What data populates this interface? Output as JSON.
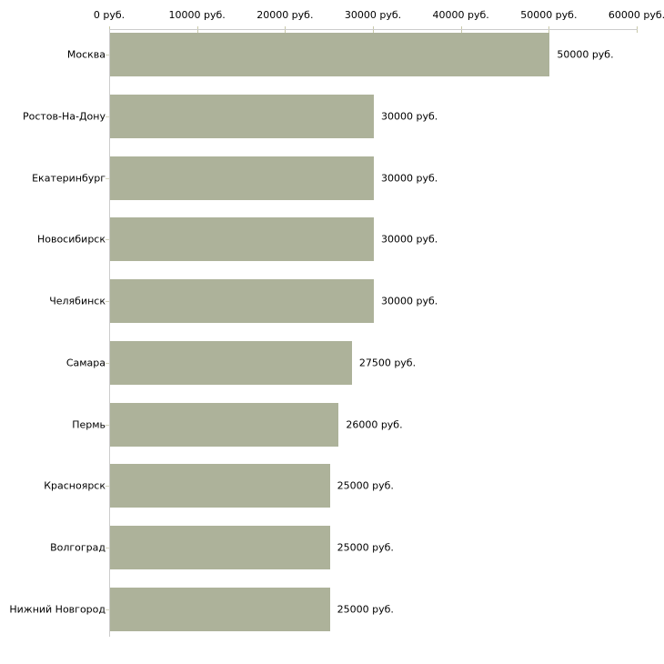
{
  "chart_data": {
    "type": "bar",
    "orientation": "horizontal",
    "title": "",
    "xlabel": "",
    "ylabel": "",
    "unit": "руб.",
    "xlim": [
      0,
      60000
    ],
    "grid": false,
    "legend": false,
    "categories": [
      "Москва",
      "Ростов-На-Дону",
      "Екатеринбург",
      "Новосибирск",
      "Челябинск",
      "Самара",
      "Пермь",
      "Красноярск",
      "Волгоград",
      "Нижний Новгород"
    ],
    "values": [
      50000,
      30000,
      30000,
      30000,
      30000,
      27500,
      26000,
      25000,
      25000,
      25000
    ],
    "value_labels": [
      "50000 руб.",
      "30000 руб.",
      "30000 руб.",
      "30000 руб.",
      "30000 руб.",
      "27500 руб.",
      "26000 руб.",
      "25000 руб.",
      "25000 руб.",
      "25000 руб."
    ],
    "x_ticks": [
      0,
      10000,
      20000,
      30000,
      40000,
      50000,
      60000
    ],
    "x_tick_labels": [
      "0 руб.",
      "10000 руб.",
      "20000 руб.",
      "30000 руб.",
      "40000 руб.",
      "50000 руб.",
      "60000 руб."
    ],
    "colors": {
      "bar": "#adb29a",
      "axis_line": "#cccccc",
      "x_tick_mark": "#c9c9a9",
      "y_tick_mark": "#d2d2ba",
      "text": "#000000",
      "background": "#ffffff"
    }
  }
}
